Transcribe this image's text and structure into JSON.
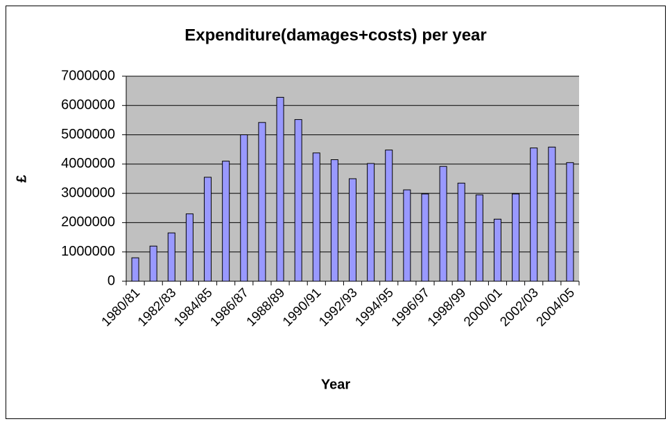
{
  "chart_data": {
    "type": "bar",
    "title": "Expenditure(damages+costs) per year",
    "x_label": "Year",
    "y_label": "£",
    "categories": [
      "1980/81",
      null,
      "1982/83",
      null,
      "1984/85",
      null,
      "1986/87",
      null,
      "1988/89",
      null,
      "1990/91",
      null,
      "1992/93",
      null,
      "1994/95",
      null,
      "1996/97",
      null,
      "1998/99",
      null,
      "2000/01",
      null,
      "2002/03",
      null,
      "2004/05"
    ],
    "values": [
      800000,
      1200000,
      1650000,
      2300000,
      3550000,
      4100000,
      5000000,
      5420000,
      6280000,
      5520000,
      4380000,
      4150000,
      3500000,
      4020000,
      4480000,
      3120000,
      2980000,
      3920000,
      3350000,
      2950000,
      2120000,
      2980000,
      4550000,
      4580000,
      4050000
    ],
    "color": "#9999ff",
    "ylim": [
      0,
      7000000
    ],
    "yticks": [
      0,
      1000000,
      2000000,
      3000000,
      4000000,
      5000000,
      6000000,
      7000000
    ],
    "grid": true
  }
}
